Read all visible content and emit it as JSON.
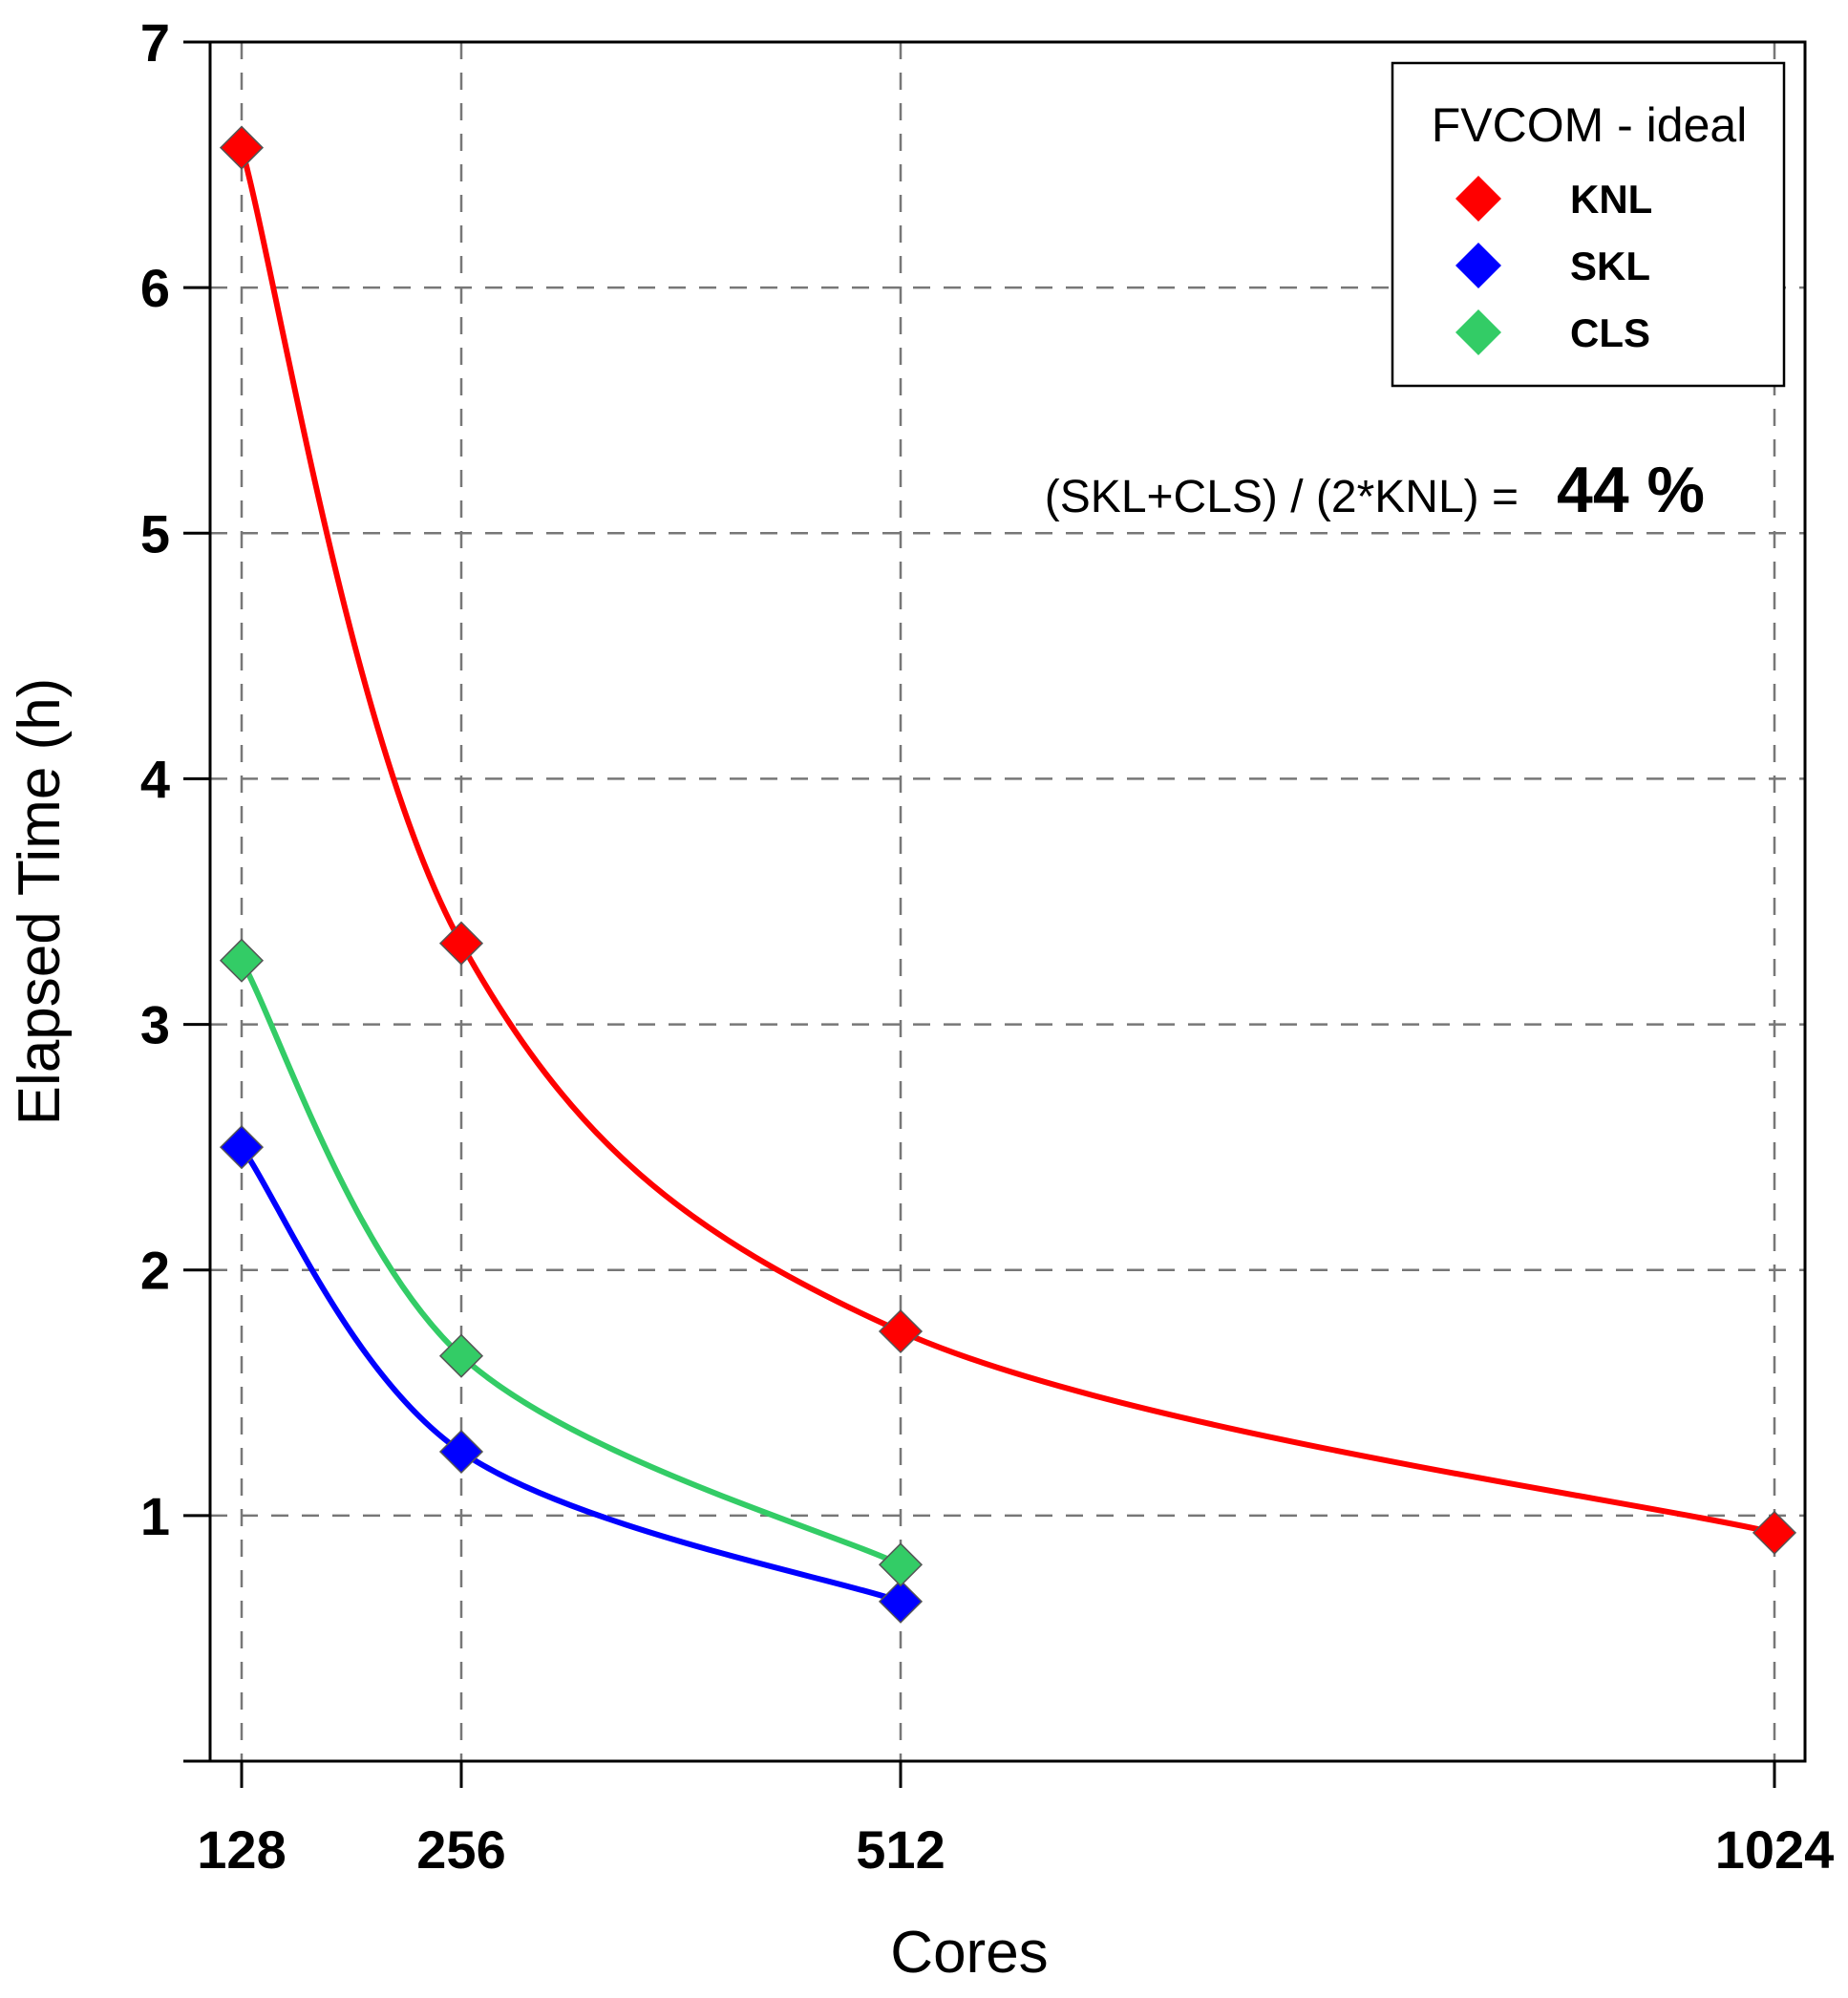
{
  "chart_data": {
    "type": "line",
    "title": "",
    "xlabel": "Cores",
    "ylabel": "Elapsed Time (h)",
    "x": [
      128,
      256,
      512,
      1024
    ],
    "x_tick_labels": [
      "128",
      "256",
      "512",
      "1024"
    ],
    "ylim": [
      0,
      7
    ],
    "y_ticks": [
      1,
      2,
      3,
      4,
      5,
      6,
      7
    ],
    "y_tick_labels": [
      "1",
      "2",
      "3",
      "4",
      "5",
      "6",
      "7"
    ],
    "grid": true,
    "legend": {
      "title": "FVCOM - ideal",
      "placement": "top-right"
    },
    "series": [
      {
        "name": "KNL",
        "color": "#ff0000",
        "x": [
          128,
          256,
          512,
          1024
        ],
        "values": [
          6.57,
          3.33,
          1.75,
          0.93
        ]
      },
      {
        "name": "SKL",
        "color": "#0000ff",
        "x": [
          128,
          256,
          512
        ],
        "values": [
          2.5,
          1.26,
          0.65
        ]
      },
      {
        "name": "CLS",
        "color": "#33cc66",
        "x": [
          128,
          256,
          512
        ],
        "values": [
          3.26,
          1.65,
          0.8
        ]
      }
    ],
    "annotation": {
      "text": "(SKL+CLS) / (2*KNL) =",
      "value": "44 %"
    }
  }
}
